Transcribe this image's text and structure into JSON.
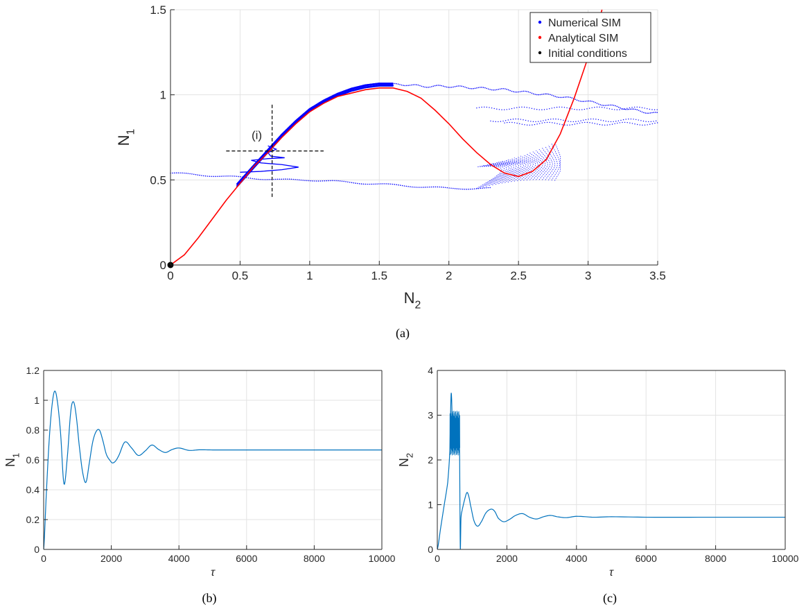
{
  "captions": {
    "a": "(a)",
    "b": "(b)",
    "c": "(c)"
  },
  "chart_data": [
    {
      "id": "a",
      "type": "scatter",
      "xlabel_main": "N",
      "xlabel_sub": "2",
      "ylabel_main": "N",
      "ylabel_sub": "1",
      "xlim": [
        0,
        3.5
      ],
      "ylim": [
        0,
        1.5
      ],
      "xticks": [
        0,
        0.5,
        1,
        1.5,
        2,
        2.5,
        3,
        3.5
      ],
      "xtick_labels": [
        "0",
        "0.5",
        "1",
        "1.5",
        "2",
        "2.5",
        "3",
        "3.5"
      ],
      "yticks": [
        0,
        0.5,
        1,
        1.5
      ],
      "ytick_labels": [
        "0",
        "0.5",
        "1",
        "1.5"
      ],
      "grid": true,
      "legend_position": "top-right",
      "legend": [
        {
          "label": "Numerical SIM",
          "color": "#0000ff"
        },
        {
          "label": "Analytical SIM",
          "color": "#ff0000"
        },
        {
          "label": "Initial conditions",
          "color": "#000000"
        }
      ],
      "annotation": {
        "text": "(i)",
        "x": 0.62,
        "y": 0.74
      },
      "crosshair": {
        "x": 0.73,
        "y": 0.67,
        "x_span": [
          0.4,
          1.1
        ],
        "y_span": [
          0.4,
          0.95
        ]
      },
      "initial_condition": {
        "x": 0.0,
        "y": 0.0
      },
      "analytical_sim": [
        [
          0,
          0
        ],
        [
          0.1,
          0.06
        ],
        [
          0.2,
          0.16
        ],
        [
          0.3,
          0.27
        ],
        [
          0.4,
          0.38
        ],
        [
          0.5,
          0.48
        ],
        [
          0.6,
          0.58
        ],
        [
          0.7,
          0.66
        ],
        [
          0.8,
          0.75
        ],
        [
          0.9,
          0.83
        ],
        [
          1.0,
          0.9
        ],
        [
          1.1,
          0.95
        ],
        [
          1.2,
          0.99
        ],
        [
          1.3,
          1.01
        ],
        [
          1.4,
          1.03
        ],
        [
          1.5,
          1.04
        ],
        [
          1.6,
          1.04
        ],
        [
          1.7,
          1.02
        ],
        [
          1.8,
          0.98
        ],
        [
          1.9,
          0.91
        ],
        [
          2.0,
          0.83
        ],
        [
          2.1,
          0.74
        ],
        [
          2.2,
          0.66
        ],
        [
          2.3,
          0.59
        ],
        [
          2.4,
          0.54
        ],
        [
          2.5,
          0.52
        ],
        [
          2.6,
          0.55
        ],
        [
          2.7,
          0.62
        ],
        [
          2.8,
          0.77
        ],
        [
          2.9,
          0.98
        ],
        [
          3.0,
          1.22
        ],
        [
          3.1,
          1.5
        ]
      ],
      "numerical_upper_branch": [
        [
          0.48,
          0.47
        ],
        [
          0.6,
          0.58
        ],
        [
          0.7,
          0.67
        ],
        [
          0.8,
          0.76
        ],
        [
          0.9,
          0.84
        ],
        [
          1.0,
          0.91
        ],
        [
          1.1,
          0.96
        ],
        [
          1.2,
          1.0
        ],
        [
          1.3,
          1.03
        ],
        [
          1.4,
          1.05
        ],
        [
          1.5,
          1.06
        ],
        [
          1.6,
          1.06
        ],
        [
          1.7,
          1.06
        ],
        [
          1.8,
          1.05
        ],
        [
          2.0,
          1.05
        ],
        [
          2.2,
          1.04
        ],
        [
          2.4,
          1.03
        ],
        [
          2.6,
          1.01
        ],
        [
          2.8,
          0.99
        ],
        [
          3.0,
          0.96
        ],
        [
          3.2,
          0.93
        ],
        [
          3.4,
          0.9
        ],
        [
          3.5,
          0.89
        ]
      ],
      "numerical_lower_branch": [
        [
          0.0,
          0.54
        ],
        [
          0.2,
          0.53
        ],
        [
          0.4,
          0.52
        ],
        [
          0.6,
          0.51
        ],
        [
          0.8,
          0.5
        ],
        [
          1.0,
          0.5
        ],
        [
          1.2,
          0.49
        ],
        [
          1.4,
          0.48
        ],
        [
          1.6,
          0.47
        ],
        [
          1.8,
          0.46
        ],
        [
          2.0,
          0.45
        ],
        [
          2.2,
          0.45
        ],
        [
          2.3,
          0.45
        ]
      ],
      "numerical_band_levels": [
        0.92,
        0.85,
        0.83
      ],
      "numerical_band_span": [
        2.2,
        3.5
      ],
      "numerical_cluster": {
        "x_range": [
          2.22,
          2.78
        ],
        "y_range": [
          0.45,
          0.78
        ]
      }
    },
    {
      "id": "b",
      "type": "line",
      "xlabel": "τ",
      "ylabel_main": "N",
      "ylabel_sub": "1",
      "xlim": [
        0,
        10000
      ],
      "ylim": [
        0,
        1.2
      ],
      "xticks": [
        0,
        2000,
        4000,
        6000,
        8000,
        10000
      ],
      "xtick_labels": [
        "0",
        "2000",
        "4000",
        "6000",
        "8000",
        "10000"
      ],
      "yticks": [
        0,
        0.2,
        0.4,
        0.6,
        0.8,
        1,
        1.2
      ],
      "ytick_labels": [
        "0",
        "0.2",
        "0.4",
        "0.6",
        "0.8",
        "1",
        "1.2"
      ],
      "grid": true,
      "color": "#0072bd",
      "x": [
        0,
        80,
        160,
        240,
        320,
        400,
        500,
        600,
        700,
        800,
        880,
        960,
        1050,
        1150,
        1250,
        1350,
        1450,
        1550,
        1650,
        1750,
        1850,
        1950,
        2050,
        2200,
        2400,
        2600,
        2800,
        3000,
        3200,
        3400,
        3600,
        3800,
        4000,
        4300,
        4600,
        5000,
        6000,
        8000,
        10000
      ],
      "y": [
        0,
        0.38,
        0.72,
        0.95,
        1.06,
        1.0,
        0.78,
        0.44,
        0.62,
        0.92,
        0.99,
        0.9,
        0.7,
        0.52,
        0.45,
        0.58,
        0.72,
        0.79,
        0.8,
        0.73,
        0.64,
        0.6,
        0.58,
        0.62,
        0.72,
        0.68,
        0.63,
        0.66,
        0.7,
        0.67,
        0.65,
        0.67,
        0.68,
        0.664,
        0.668,
        0.667,
        0.667,
        0.667,
        0.667
      ]
    },
    {
      "id": "c",
      "type": "line",
      "xlabel": "τ",
      "ylabel_main": "N",
      "ylabel_sub": "2",
      "xlim": [
        0,
        10000
      ],
      "ylim": [
        0,
        4
      ],
      "xticks": [
        0,
        2000,
        4000,
        6000,
        8000,
        10000
      ],
      "xtick_labels": [
        "0",
        "2000",
        "4000",
        "6000",
        "8000",
        "10000"
      ],
      "yticks": [
        0,
        1,
        2,
        3,
        4
      ],
      "ytick_labels": [
        "0",
        "1",
        "2",
        "3",
        "4"
      ],
      "grid": true,
      "color": "#0072bd",
      "x": [
        0,
        100,
        200,
        300,
        360,
        400,
        450,
        500,
        550,
        600,
        640,
        660,
        680,
        720,
        780,
        850,
        900,
        950,
        1050,
        1150,
        1250,
        1400,
        1550,
        1650,
        1750,
        1900,
        2050,
        2250,
        2450,
        2650,
        2850,
        3050,
        3250,
        3450,
        3700,
        4000,
        4500,
        5000,
        6000,
        8000,
        10000
      ],
      "y": [
        0,
        0.5,
        1.0,
        1.5,
        2.2,
        3.5,
        2.4,
        2.9,
        2.3,
        2.8,
        2.2,
        0.05,
        0.7,
        0.9,
        1.1,
        1.27,
        1.2,
        1.0,
        0.65,
        0.52,
        0.6,
        0.82,
        0.9,
        0.85,
        0.7,
        0.62,
        0.66,
        0.76,
        0.8,
        0.72,
        0.68,
        0.73,
        0.76,
        0.73,
        0.71,
        0.74,
        0.72,
        0.73,
        0.72,
        0.72,
        0.72
      ],
      "noisy_segment": {
        "x_range": [
          360,
          650
        ],
        "y_low": 2.2,
        "y_high": 3.0
      }
    }
  ]
}
